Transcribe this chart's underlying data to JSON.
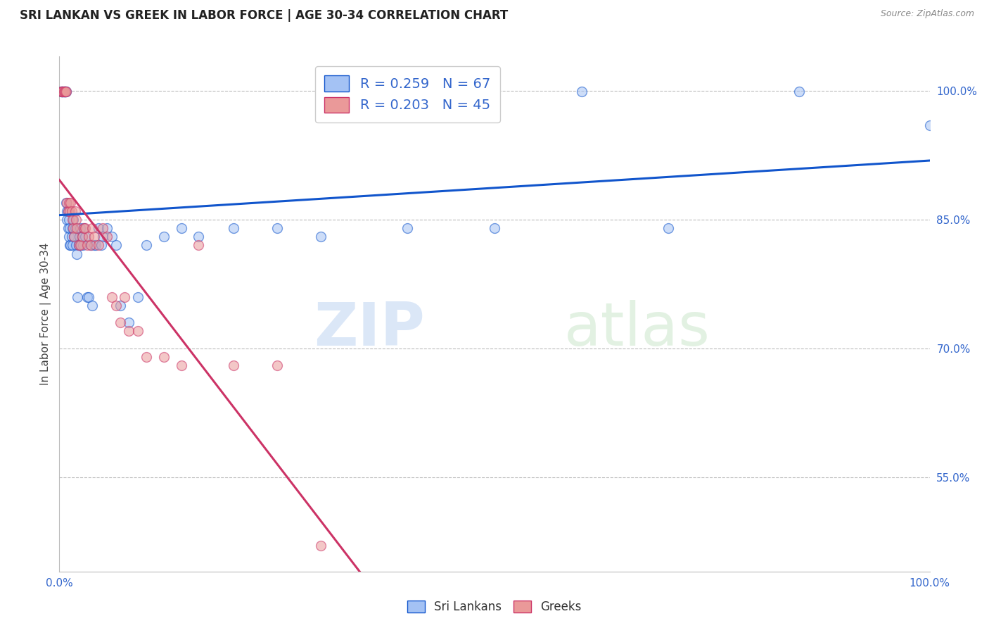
{
  "title": "SRI LANKAN VS GREEK IN LABOR FORCE | AGE 30-34 CORRELATION CHART",
  "source": "Source: ZipAtlas.com",
  "ylabel": "In Labor Force | Age 30-34",
  "xlim": [
    0.0,
    1.0
  ],
  "ylim": [
    0.44,
    1.04
  ],
  "sri_lankan_color": "#a4c2f4",
  "greek_color": "#ea9999",
  "sri_lankan_trend_color": "#1155cc",
  "greek_trend_color": "#cc3366",
  "legend_R_sri": "R = 0.259",
  "legend_N_sri": "N = 67",
  "legend_R_greek": "R = 0.203",
  "legend_N_greek": "N = 45",
  "sri_x": [
    0.002,
    0.003,
    0.003,
    0.004,
    0.004,
    0.005,
    0.005,
    0.006,
    0.006,
    0.007,
    0.007,
    0.008,
    0.008,
    0.009,
    0.009,
    0.01,
    0.01,
    0.011,
    0.011,
    0.012,
    0.012,
    0.013,
    0.014,
    0.015,
    0.015,
    0.016,
    0.017,
    0.018,
    0.019,
    0.02,
    0.021,
    0.022,
    0.023,
    0.024,
    0.025,
    0.026,
    0.027,
    0.028,
    0.03,
    0.032,
    0.034,
    0.036,
    0.038,
    0.04,
    0.042,
    0.045,
    0.048,
    0.05,
    0.055,
    0.06,
    0.065,
    0.07,
    0.08,
    0.09,
    0.1,
    0.12,
    0.14,
    0.16,
    0.2,
    0.25,
    0.3,
    0.4,
    0.5,
    0.6,
    0.7,
    0.85,
    1.0
  ],
  "sri_y": [
    0.999,
    0.999,
    0.999,
    0.999,
    0.999,
    0.999,
    0.999,
    0.999,
    0.999,
    0.999,
    0.999,
    0.999,
    0.87,
    0.86,
    0.85,
    0.84,
    0.86,
    0.85,
    0.83,
    0.82,
    0.84,
    0.82,
    0.83,
    0.84,
    0.82,
    0.85,
    0.83,
    0.84,
    0.82,
    0.81,
    0.76,
    0.82,
    0.83,
    0.84,
    0.82,
    0.83,
    0.82,
    0.84,
    0.83,
    0.76,
    0.76,
    0.82,
    0.75,
    0.82,
    0.82,
    0.84,
    0.82,
    0.83,
    0.84,
    0.83,
    0.82,
    0.75,
    0.73,
    0.76,
    0.82,
    0.83,
    0.84,
    0.83,
    0.84,
    0.84,
    0.83,
    0.84,
    0.84,
    0.999,
    0.84,
    0.999,
    0.96
  ],
  "greek_x": [
    0.002,
    0.003,
    0.004,
    0.005,
    0.006,
    0.007,
    0.008,
    0.009,
    0.01,
    0.011,
    0.012,
    0.013,
    0.014,
    0.015,
    0.016,
    0.017,
    0.018,
    0.019,
    0.02,
    0.022,
    0.024,
    0.026,
    0.028,
    0.03,
    0.032,
    0.034,
    0.036,
    0.038,
    0.04,
    0.045,
    0.05,
    0.055,
    0.06,
    0.065,
    0.07,
    0.075,
    0.08,
    0.09,
    0.1,
    0.12,
    0.14,
    0.16,
    0.2,
    0.25,
    0.3
  ],
  "greek_y": [
    0.999,
    0.999,
    0.999,
    0.999,
    0.999,
    0.999,
    0.999,
    0.87,
    0.86,
    0.87,
    0.86,
    0.87,
    0.86,
    0.85,
    0.84,
    0.83,
    0.86,
    0.85,
    0.84,
    0.82,
    0.82,
    0.83,
    0.84,
    0.84,
    0.82,
    0.83,
    0.82,
    0.84,
    0.83,
    0.82,
    0.84,
    0.83,
    0.76,
    0.75,
    0.73,
    0.76,
    0.72,
    0.72,
    0.69,
    0.69,
    0.68,
    0.82,
    0.68,
    0.68,
    0.47
  ],
  "watermark_zip": "ZIP",
  "watermark_atlas": "atlas",
  "grid_color": "#bbbbbb",
  "bg_color": "#ffffff",
  "marker_size": 10,
  "marker_alpha": 0.55,
  "line_width": 2.2
}
